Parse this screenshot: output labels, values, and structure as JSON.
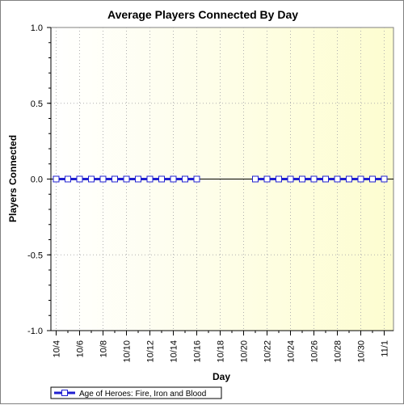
{
  "chart_data": {
    "type": "line",
    "title": "Average Players Connected By Day",
    "xlabel": "Day",
    "ylabel": "Players Connected",
    "ylim": [
      -1.0,
      1.0
    ],
    "yticks": [
      1.0,
      0.5,
      0.0,
      -0.5,
      -1.0
    ],
    "ytick_labels": [
      "1.0",
      "0.5",
      "0.0",
      "-0.5",
      "-1.0"
    ],
    "x_categories": [
      "10/4",
      "10/5",
      "10/6",
      "10/7",
      "10/8",
      "10/9",
      "10/10",
      "10/11",
      "10/12",
      "10/13",
      "10/14",
      "10/15",
      "10/16",
      "10/17",
      "10/18",
      "10/19",
      "10/20",
      "10/21",
      "10/22",
      "10/23",
      "10/24",
      "10/25",
      "10/26",
      "10/27",
      "10/28",
      "10/29",
      "10/30",
      "10/31",
      "11/1"
    ],
    "xtick_labels": [
      "10/4",
      "10/6",
      "10/8",
      "10/10",
      "10/12",
      "10/14",
      "10/16",
      "10/18",
      "10/20",
      "10/22",
      "10/24",
      "10/26",
      "10/28",
      "10/30",
      "11/1"
    ],
    "series": [
      {
        "name": "Age of Heroes: Fire, Iron and Blood",
        "values": [
          0,
          0,
          0,
          0,
          0,
          0,
          0,
          0,
          0,
          0,
          0,
          0,
          0,
          null,
          null,
          null,
          null,
          0,
          0,
          0,
          0,
          0,
          0,
          0,
          0,
          0,
          0,
          0,
          0
        ]
      }
    ],
    "grid": true,
    "legend_position": "bottom-left",
    "colors": {
      "series_line": "#1f1fd0",
      "marker_fill": "#ffffff",
      "zero_line": "#000000",
      "plot_bg_left": "#ffffff",
      "plot_bg_right": "#fdfdd0",
      "grid": "#b0b0b0"
    }
  }
}
